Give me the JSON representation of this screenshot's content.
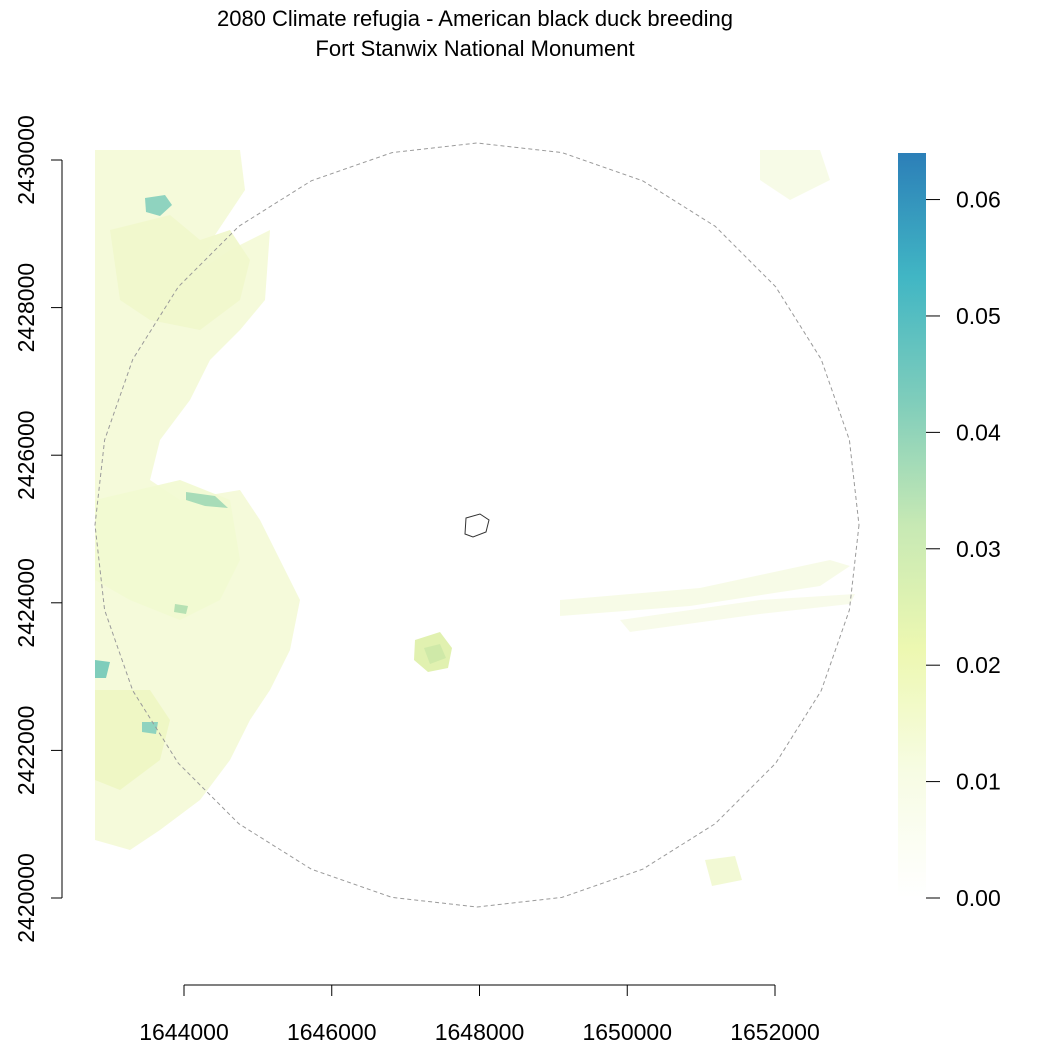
{
  "title": {
    "line1": "2080 Climate refugia - American black duck breeding",
    "line2": "Fort Stanwix National Monument"
  },
  "map": {
    "x_axis": {
      "ticks": [
        "1644000",
        "1646000",
        "1648000",
        "1650000",
        "1652000"
      ],
      "tick_values": [
        1644000,
        1646000,
        1648000,
        1650000,
        1652000
      ]
    },
    "y_axis": {
      "ticks": [
        "2420000",
        "2422000",
        "2424000",
        "2426000",
        "2428000",
        "2430000"
      ],
      "tick_values": [
        2420000,
        2422000,
        2424000,
        2426000,
        2428000,
        2430000
      ]
    },
    "legend": {
      "ticks": [
        "0.00",
        "0.01",
        "0.02",
        "0.03",
        "0.04",
        "0.05",
        "0.06"
      ],
      "tick_values": [
        0.0,
        0.01,
        0.02,
        0.03,
        0.04,
        0.05,
        0.06
      ],
      "max_value": 0.064,
      "colors": [
        "#ffffff",
        "#f7fce4",
        "#edf8b1",
        "#c7e9b4",
        "#7fcdbb",
        "#41b6c4",
        "#2c7fb8"
      ]
    },
    "boundary_style": "dashed grey circle buffer",
    "park_outline": "small polygon near center"
  }
}
